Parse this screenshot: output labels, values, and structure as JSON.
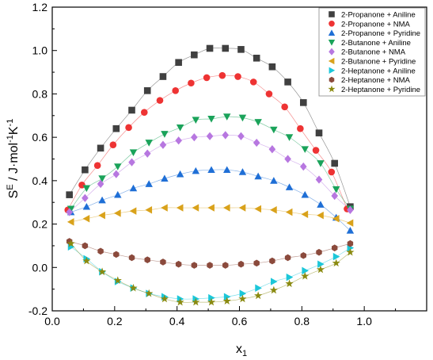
{
  "chart_data": {
    "type": "scatter",
    "xlabel": "x",
    "xlabel_subscript": "1",
    "ylabel": {
      "main": "S",
      "sup1": "E",
      "mid": " / J·mol",
      "sup2": "-1",
      "after": "K",
      "sup3": "-1"
    },
    "xlim": [
      0.0,
      1.2
    ],
    "ylim": [
      -0.2,
      1.2
    ],
    "xticks": [
      "0.0",
      "0.2",
      "0.4",
      "0.6",
      "0.8",
      "1.0"
    ],
    "yticks": [
      "-0.2",
      "0.0",
      "0.2",
      "0.4",
      "0.6",
      "0.8",
      "1.0",
      "1.2"
    ],
    "grid": false,
    "legend_position": "top-right",
    "series": [
      {
        "name": "2-Propanone + Aniline",
        "color": "#404040",
        "marker": "square",
        "x": [
          0.055,
          0.105,
          0.155,
          0.205,
          0.255,
          0.305,
          0.355,
          0.405,
          0.455,
          0.505,
          0.555,
          0.605,
          0.655,
          0.705,
          0.755,
          0.805,
          0.855,
          0.905,
          0.955
        ],
        "y": [
          0.335,
          0.45,
          0.55,
          0.64,
          0.725,
          0.815,
          0.88,
          0.945,
          0.98,
          1.01,
          1.01,
          1.005,
          0.965,
          0.925,
          0.855,
          0.76,
          0.62,
          0.48,
          0.28
        ]
      },
      {
        "name": "2-Propanone + NMA",
        "color": "#ee3333",
        "marker": "circle",
        "x": [
          0.05,
          0.095,
          0.145,
          0.195,
          0.245,
          0.295,
          0.345,
          0.395,
          0.445,
          0.495,
          0.545,
          0.595,
          0.645,
          0.695,
          0.745,
          0.795,
          0.845,
          0.895,
          0.945
        ],
        "y": [
          0.265,
          0.38,
          0.47,
          0.565,
          0.645,
          0.715,
          0.77,
          0.815,
          0.85,
          0.875,
          0.885,
          0.88,
          0.855,
          0.8,
          0.74,
          0.64,
          0.54,
          0.44,
          0.27
        ]
      },
      {
        "name": "2-Propanone + Pyridine",
        "color": "#1f6fd6",
        "marker": "triangle-up",
        "x": [
          0.06,
          0.11,
          0.16,
          0.21,
          0.26,
          0.31,
          0.36,
          0.41,
          0.46,
          0.51,
          0.56,
          0.61,
          0.66,
          0.71,
          0.76,
          0.81,
          0.86,
          0.91,
          0.955
        ],
        "y": [
          0.255,
          0.28,
          0.31,
          0.335,
          0.365,
          0.385,
          0.41,
          0.43,
          0.445,
          0.45,
          0.45,
          0.44,
          0.42,
          0.4,
          0.37,
          0.335,
          0.29,
          0.23,
          0.17
        ]
      },
      {
        "name": "2-Butanone + Aniline",
        "color": "#1aa35a",
        "marker": "triangle-down",
        "x": [
          0.06,
          0.11,
          0.16,
          0.21,
          0.26,
          0.31,
          0.36,
          0.41,
          0.46,
          0.51,
          0.56,
          0.61,
          0.66,
          0.71,
          0.76,
          0.81,
          0.86,
          0.91,
          0.955
        ],
        "y": [
          0.27,
          0.365,
          0.41,
          0.465,
          0.53,
          0.575,
          0.615,
          0.645,
          0.68,
          0.685,
          0.695,
          0.69,
          0.67,
          0.635,
          0.6,
          0.545,
          0.48,
          0.36,
          0.27
        ]
      },
      {
        "name": "2-Butanone + NMA",
        "color": "#b777e0",
        "marker": "diamond",
        "x": [
          0.055,
          0.105,
          0.155,
          0.205,
          0.255,
          0.305,
          0.355,
          0.405,
          0.455,
          0.505,
          0.555,
          0.605,
          0.655,
          0.705,
          0.755,
          0.805,
          0.855,
          0.905,
          0.955
        ],
        "y": [
          0.255,
          0.32,
          0.385,
          0.43,
          0.485,
          0.525,
          0.565,
          0.585,
          0.6,
          0.605,
          0.61,
          0.605,
          0.575,
          0.545,
          0.5,
          0.465,
          0.405,
          0.33,
          0.265
        ]
      },
      {
        "name": "2-Butanone + Pyridine",
        "color": "#d9a21b",
        "marker": "triangle-left",
        "x": [
          0.06,
          0.11,
          0.16,
          0.21,
          0.26,
          0.31,
          0.36,
          0.41,
          0.46,
          0.51,
          0.56,
          0.61,
          0.66,
          0.71,
          0.76,
          0.81,
          0.86,
          0.91,
          0.955
        ],
        "y": [
          0.21,
          0.225,
          0.24,
          0.25,
          0.26,
          0.265,
          0.275,
          0.275,
          0.275,
          0.275,
          0.275,
          0.275,
          0.27,
          0.265,
          0.255,
          0.245,
          0.24,
          0.225,
          0.205
        ]
      },
      {
        "name": "2-Heptanone + Aniline",
        "color": "#1cc7d9",
        "marker": "triangle-right",
        "x": [
          0.06,
          0.11,
          0.16,
          0.21,
          0.26,
          0.31,
          0.36,
          0.41,
          0.46,
          0.51,
          0.56,
          0.61,
          0.66,
          0.71,
          0.76,
          0.81,
          0.86,
          0.91,
          0.955
        ],
        "y": [
          0.095,
          0.04,
          -0.02,
          -0.065,
          -0.095,
          -0.12,
          -0.135,
          -0.145,
          -0.145,
          -0.14,
          -0.135,
          -0.12,
          -0.095,
          -0.065,
          -0.045,
          -0.015,
          0.015,
          0.05,
          0.09
        ]
      },
      {
        "name": "2-Heptanone + NMA",
        "color": "#8b4a3c",
        "marker": "hexagon",
        "x": [
          0.055,
          0.105,
          0.155,
          0.205,
          0.255,
          0.305,
          0.355,
          0.405,
          0.455,
          0.505,
          0.555,
          0.605,
          0.655,
          0.705,
          0.755,
          0.805,
          0.855,
          0.905,
          0.955
        ],
        "y": [
          0.12,
          0.1,
          0.075,
          0.06,
          0.045,
          0.035,
          0.025,
          0.015,
          0.01,
          0.01,
          0.01,
          0.015,
          0.02,
          0.03,
          0.045,
          0.055,
          0.07,
          0.09,
          0.11
        ]
      },
      {
        "name": "2-Heptanone + Pyridine",
        "color": "#8a8a10",
        "marker": "star",
        "x": [
          0.06,
          0.11,
          0.16,
          0.21,
          0.26,
          0.31,
          0.36,
          0.41,
          0.46,
          0.51,
          0.56,
          0.61,
          0.66,
          0.71,
          0.76,
          0.81,
          0.86,
          0.91,
          0.955
        ],
        "y": [
          0.11,
          0.03,
          -0.02,
          -0.06,
          -0.095,
          -0.12,
          -0.145,
          -0.16,
          -0.16,
          -0.16,
          -0.155,
          -0.145,
          -0.13,
          -0.105,
          -0.075,
          -0.04,
          -0.01,
          0.02,
          0.07
        ]
      }
    ]
  }
}
